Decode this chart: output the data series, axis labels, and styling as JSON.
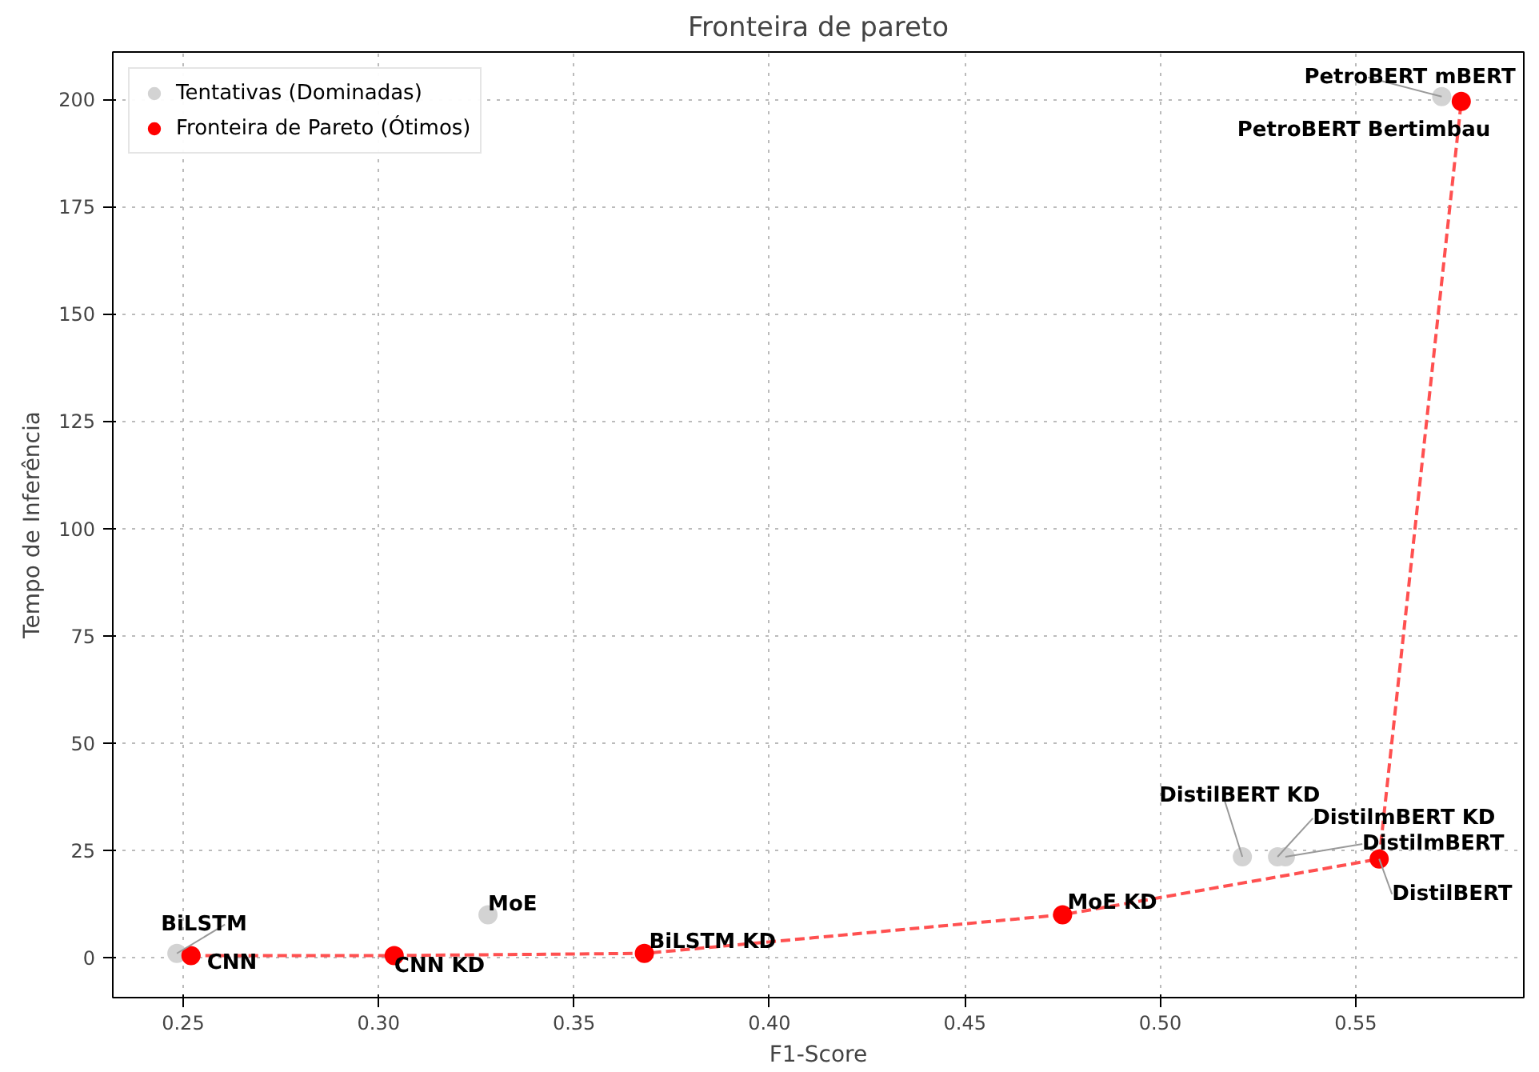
{
  "chart_data": {
    "type": "scatter",
    "title": "Fronteira de pareto",
    "xlabel": "F1-Score",
    "ylabel": "Tempo de Inferência",
    "xlim": [
      0.232,
      0.593
    ],
    "ylim": [
      -9.3,
      211
    ],
    "xticks": [
      {
        "value": 0.25,
        "label": "0.25"
      },
      {
        "value": 0.3,
        "label": "0.30"
      },
      {
        "value": 0.35,
        "label": "0.35"
      },
      {
        "value": 0.4,
        "label": "0.40"
      },
      {
        "value": 0.45,
        "label": "0.45"
      },
      {
        "value": 0.5,
        "label": "0.50"
      },
      {
        "value": 0.55,
        "label": "0.55"
      }
    ],
    "yticks": [
      0,
      25,
      50,
      75,
      100,
      125,
      150,
      175,
      200
    ],
    "grid": true,
    "legend": "top left",
    "series": [
      {
        "name": "Tentativas (Dominadas)",
        "color": "#d3d3d3",
        "x": [
          0.2484,
          0.328,
          0.521,
          0.53,
          0.532,
          0.572
        ],
        "values": [
          1,
          10,
          23.5,
          23.5,
          23.5,
          200.6
        ]
      },
      {
        "type": "line",
        "line_style": "dashed",
        "color": "#ff5050",
        "x": [
          0.252,
          0.304,
          0.368,
          0.475,
          0.556,
          0.577
        ],
        "values": [
          0.5,
          0.5,
          1,
          10,
          23,
          199.5
        ]
      },
      {
        "name": "Fronteira de Pareto (Ótimos)",
        "color": "#ff0000",
        "x": [
          0.252,
          0.304,
          0.368,
          0.475,
          0.556,
          0.577
        ],
        "values": [
          0.5,
          0.5,
          1,
          10,
          23,
          199.5
        ]
      }
    ],
    "annotations": [
      {
        "text": "BiLSTM",
        "x": 0.2484,
        "y": 1
      },
      {
        "text": "MoE",
        "x": 0.328,
        "y": 10
      },
      {
        "text": "DistilBERT KD",
        "x": 0.521,
        "y": 23.5
      },
      {
        "text": "DistilmBERT KD",
        "x": 0.53,
        "y": 23.5
      },
      {
        "text": "DistilmBERT",
        "x": 0.532,
        "y": 23.5
      },
      {
        "text": "PetroBERT mBERT",
        "x": 0.572,
        "y": 200.6
      },
      {
        "text": "CNN",
        "x": 0.252,
        "y": 0.5
      },
      {
        "text": "CNN KD",
        "x": 0.304,
        "y": 0.5
      },
      {
        "text": "BiLSTM KD",
        "x": 0.368,
        "y": 1
      },
      {
        "text": "MoE KD",
        "x": 0.475,
        "y": 10
      },
      {
        "text": "DistilBERT",
        "x": 0.556,
        "y": 23
      },
      {
        "text": "PetroBERT Bertimbau",
        "x": 0.577,
        "y": 199.5
      }
    ]
  }
}
